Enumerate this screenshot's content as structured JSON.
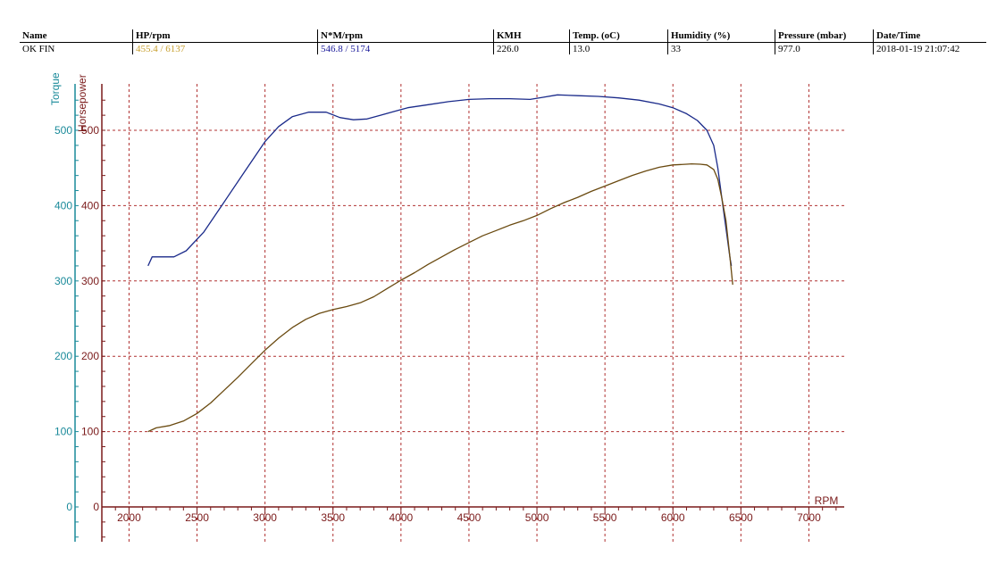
{
  "header": {
    "columns": [
      "Name",
      "HP/rpm",
      "N*M/rpm",
      "KMH",
      "Temp. (oC)",
      "Humidity (%)",
      "Pressure (mbar)",
      "Date/Time"
    ],
    "row": {
      "name": "OK FIN",
      "hp_rpm": "455.4 / 6137",
      "nm_rpm": "546.8 / 5174",
      "kmh": "226.0",
      "temp": "13.0",
      "humidity": "33",
      "pressure": "977.0",
      "datetime": "2018-01-19 21:07:42"
    }
  },
  "colors": {
    "torque_curve": "#1a2a8a",
    "hp_curve": "#6a4a10",
    "grid": "#b03030",
    "torque_axis": "#1a8a9a",
    "hp_axis": "#7a1a1a",
    "hp_value_text": "#c8a030",
    "torque_value_text": "#1a1a9a"
  },
  "chart_data": {
    "type": "line",
    "xlabel": "RPM",
    "y_left_outer_label": "Torque",
    "y_left_inner_label": "Horsepower",
    "xlim": [
      1800,
      7250
    ],
    "ylim": [
      -45,
      560
    ],
    "x_ticks": [
      2000,
      2500,
      3000,
      3500,
      4000,
      4500,
      5000,
      5500,
      6000,
      6500,
      7000
    ],
    "y_ticks": [
      0,
      100,
      200,
      300,
      400,
      500
    ],
    "grid": true,
    "series": [
      {
        "axis": "torque",
        "color": "#1a2a8a",
        "x": [
          2140,
          2170,
          2250,
          2330,
          2420,
          2550,
          2700,
          2850,
          3000,
          3100,
          3200,
          3320,
          3450,
          3550,
          3650,
          3750,
          3850,
          3950,
          4050,
          4200,
          4350,
          4500,
          4650,
          4800,
          4950,
          5050,
          5150,
          5300,
          5450,
          5600,
          5750,
          5900,
          6000,
          6100,
          6180,
          6250,
          6300,
          6330,
          6360,
          6390,
          6420,
          6430
        ],
        "y": [
          320,
          332,
          332,
          332,
          340,
          365,
          405,
          445,
          485,
          505,
          518,
          524,
          524,
          517,
          514,
          515,
          520,
          525,
          530,
          534,
          538,
          541,
          542,
          542,
          541,
          544,
          547,
          546,
          545,
          543,
          540,
          535,
          530,
          522,
          513,
          500,
          480,
          450,
          410,
          370,
          330,
          320
        ]
      },
      {
        "axis": "hp",
        "color": "#6a4a10",
        "x": [
          2140,
          2200,
          2300,
          2400,
          2500,
          2600,
          2700,
          2800,
          2900,
          3000,
          3100,
          3200,
          3300,
          3400,
          3500,
          3600,
          3700,
          3800,
          3900,
          4000,
          4100,
          4200,
          4300,
          4400,
          4500,
          4600,
          4700,
          4800,
          4900,
          5000,
          5100,
          5200,
          5300,
          5400,
          5500,
          5600,
          5700,
          5800,
          5900,
          6000,
          6100,
          6137,
          6200,
          6250,
          6300,
          6330,
          6360,
          6390,
          6420,
          6440
        ],
        "y": [
          100,
          105,
          108,
          114,
          124,
          138,
          155,
          172,
          190,
          208,
          224,
          238,
          249,
          257,
          262,
          266,
          271,
          279,
          290,
          301,
          311,
          322,
          332,
          342,
          351,
          360,
          367,
          374,
          380,
          387,
          396,
          404,
          411,
          419,
          426,
          433,
          440,
          446,
          451,
          454,
          455,
          455.4,
          455,
          454,
          448,
          435,
          410,
          380,
          330,
          295
        ]
      }
    ]
  }
}
